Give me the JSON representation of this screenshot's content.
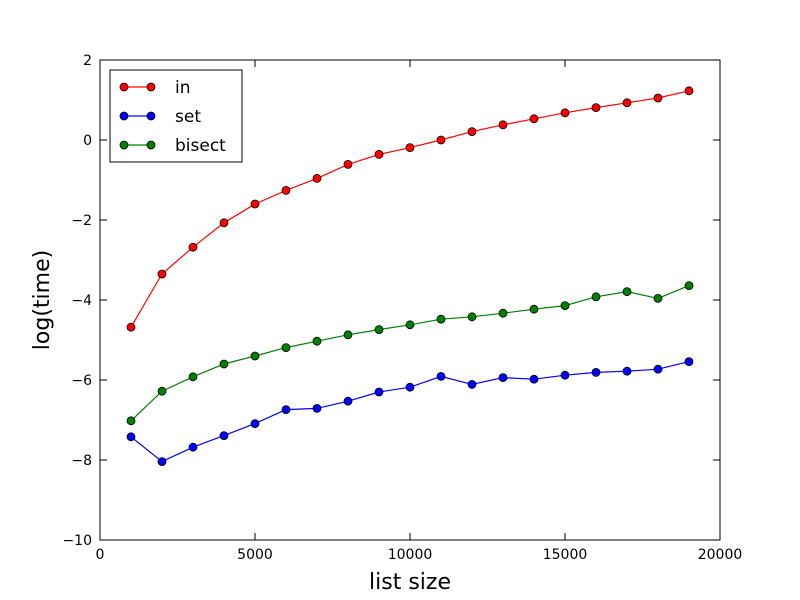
{
  "chart_data": {
    "type": "line",
    "title": "",
    "xlabel": "list size",
    "ylabel": "log(time)",
    "xlim": [
      0,
      20000
    ],
    "ylim": [
      -10,
      2
    ],
    "x_ticks": [
      0,
      5000,
      10000,
      15000,
      20000
    ],
    "y_ticks": [
      -10,
      -8,
      -6,
      -4,
      -2,
      0,
      2
    ],
    "grid": false,
    "legend_position": "top-left",
    "x": [
      1000,
      2000,
      3000,
      4000,
      5000,
      6000,
      7000,
      8000,
      9000,
      10000,
      11000,
      12000,
      13000,
      14000,
      15000,
      16000,
      17000,
      18000,
      19000
    ],
    "series": [
      {
        "name": "in",
        "color": "#ff0000",
        "values": [
          -4.68,
          -3.35,
          -2.68,
          -2.07,
          -1.6,
          -1.26,
          -0.96,
          -0.61,
          -0.36,
          -0.19,
          0.0,
          0.21,
          0.38,
          0.53,
          0.68,
          0.81,
          0.93,
          1.05,
          1.23
        ]
      },
      {
        "name": "set",
        "color": "#0000ff",
        "values": [
          -7.42,
          -8.04,
          -7.68,
          -7.39,
          -7.09,
          -6.74,
          -6.71,
          -6.53,
          -6.3,
          -6.18,
          -5.91,
          -6.11,
          -5.94,
          -5.98,
          -5.88,
          -5.81,
          -5.78,
          -5.73,
          -5.54
        ]
      },
      {
        "name": "bisect",
        "color": "#008000",
        "values": [
          -7.02,
          -6.28,
          -5.92,
          -5.6,
          -5.4,
          -5.19,
          -5.03,
          -4.87,
          -4.74,
          -4.62,
          -4.48,
          -4.42,
          -4.33,
          -4.23,
          -4.14,
          -3.92,
          -3.79,
          -3.96,
          -3.64
        ]
      }
    ]
  }
}
